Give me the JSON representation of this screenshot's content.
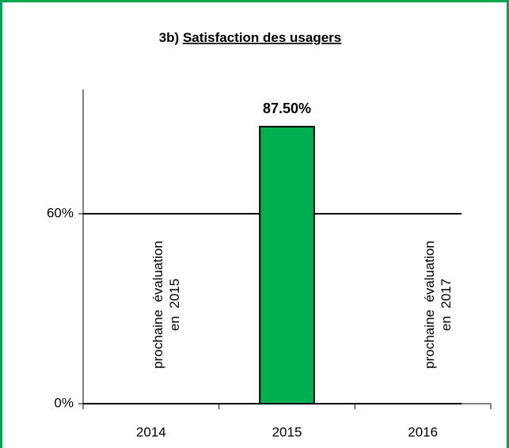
{
  "chart_data": {
    "type": "bar",
    "title": "3b) Satisfaction des usagers",
    "categories": [
      "2014",
      "2015",
      "2016"
    ],
    "values": [
      null,
      87.5,
      null
    ],
    "value_labels": [
      null,
      "87.50%",
      null
    ],
    "color": "#00b050",
    "ylim": [
      0,
      100
    ],
    "yticks": [
      {
        "value": 0,
        "label": "0%"
      },
      {
        "value": 60,
        "label": "60%"
      }
    ],
    "grid": true,
    "annotations": [
      {
        "category": 0,
        "lines": [
          "prochaine  évaluation",
          "en  2015"
        ]
      },
      {
        "category": 2,
        "lines": [
          "prochaine  évaluation",
          "en  2017"
        ]
      }
    ]
  }
}
